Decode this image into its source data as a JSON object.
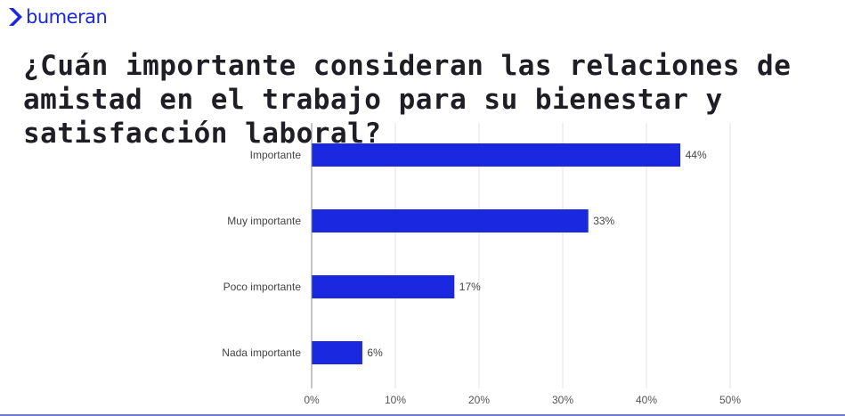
{
  "brand": {
    "name": "bumeran",
    "color": "#1a28e0",
    "icon": "chevron-right-icon"
  },
  "title": "¿Cuán importante consideran las relaciones de amistad en el trabajo para su bienestar y satisfacción laboral?",
  "chart_data": {
    "type": "bar",
    "orientation": "horizontal",
    "categories": [
      "Importante",
      "Muy importante",
      "Poco importante",
      "Nada importante"
    ],
    "values": [
      44,
      33,
      17,
      6
    ],
    "value_labels": [
      "44%",
      "33%",
      "17%",
      "6%"
    ],
    "xticks": [
      "0%",
      "10%",
      "20%",
      "30%",
      "40%",
      "50%"
    ],
    "xlim": [
      0,
      50
    ],
    "bar_color": "#1a28e0",
    "grid": true
  }
}
